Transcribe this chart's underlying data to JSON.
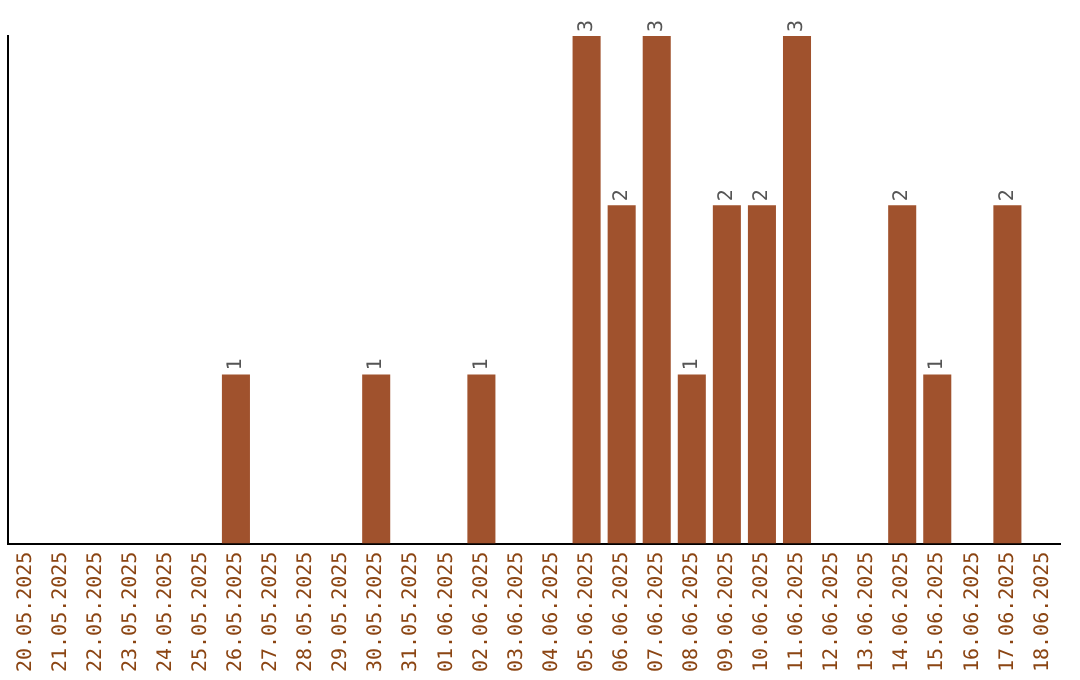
{
  "chart_data": {
    "type": "bar",
    "categories": [
      "20.05.2025",
      "21.05.2025",
      "22.05.2025",
      "23.05.2025",
      "24.05.2025",
      "25.05.2025",
      "26.05.2025",
      "27.05.2025",
      "28.05.2025",
      "29.05.2025",
      "30.05.2025",
      "31.05.2025",
      "01.06.2025",
      "02.06.2025",
      "03.06.2025",
      "04.06.2025",
      "05.06.2025",
      "06.06.2025",
      "07.06.2025",
      "08.06.2025",
      "09.06.2025",
      "10.06.2025",
      "11.06.2025",
      "12.06.2025",
      "13.06.2025",
      "14.06.2025",
      "15.06.2025",
      "16.06.2025",
      "17.06.2025",
      "18.06.2025"
    ],
    "values": [
      0,
      0,
      0,
      0,
      0,
      0,
      1,
      0,
      0,
      0,
      1,
      0,
      0,
      1,
      0,
      0,
      3,
      2,
      3,
      1,
      2,
      2,
      3,
      0,
      0,
      2,
      1,
      0,
      2,
      0
    ],
    "value_labels": [
      null,
      null,
      null,
      null,
      null,
      null,
      "1",
      null,
      null,
      null,
      "1",
      null,
      null,
      "1",
      null,
      null,
      "3",
      "2",
      "3",
      "1",
      "2",
      "2",
      "3",
      null,
      null,
      "2",
      "1",
      null,
      "2",
      null
    ],
    "color": "#a0522d",
    "ylim": [
      0,
      3
    ],
    "tick_labels": "x",
    "grid": false,
    "legend": false
  }
}
